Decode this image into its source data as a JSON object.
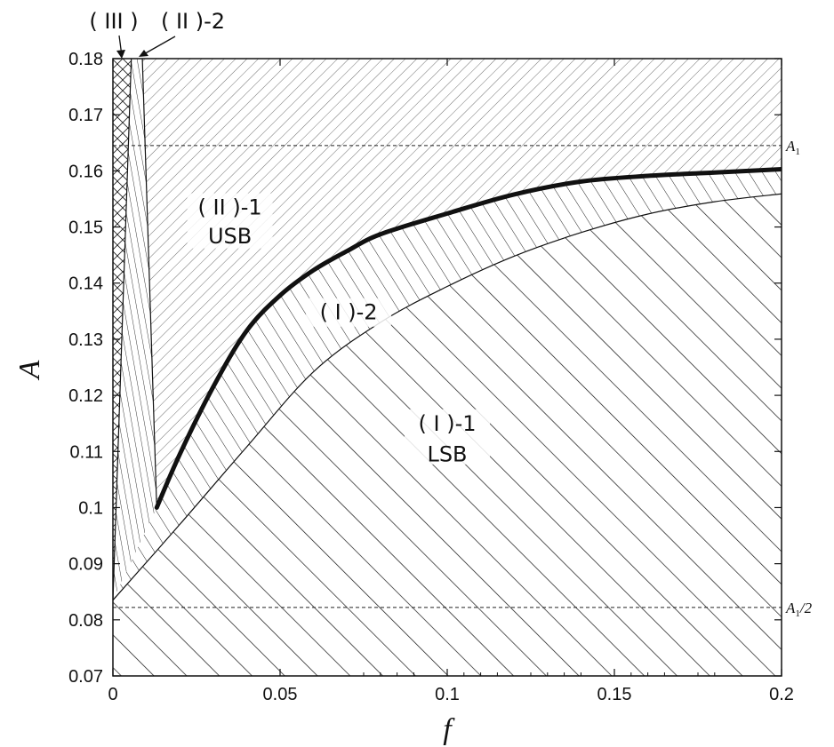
{
  "chart_data": {
    "type": "area",
    "xlabel": "f",
    "ylabel": "A",
    "xlim": [
      0,
      0.2
    ],
    "ylim": [
      0.07,
      0.18
    ],
    "x_ticks": [
      "0",
      "0.05",
      "0.1",
      "0.15",
      "0.2"
    ],
    "y_ticks": [
      "0.07",
      "0.08",
      "0.09",
      "0.1",
      "0.11",
      "0.12",
      "0.13",
      "0.14",
      "0.15",
      "0.16",
      "0.17",
      "0.18"
    ],
    "reference_lines": [
      {
        "name": "A1",
        "label_main": "A",
        "label_sub": "1",
        "label_suffix": "",
        "y": 0.1645
      },
      {
        "name": "A1/2",
        "label_main": "A",
        "label_sub": "1",
        "label_suffix": "/2",
        "y": 0.0822
      }
    ],
    "curves": {
      "boundary_USB": {
        "x": [
          0.0131,
          0.02,
          0.03,
          0.04,
          0.05,
          0.06,
          0.07,
          0.08,
          0.1,
          0.12,
          0.14,
          0.16,
          0.18,
          0.2
        ],
        "y": [
          0.1,
          0.1095,
          0.1215,
          0.1315,
          0.1378,
          0.1423,
          0.1457,
          0.1487,
          0.1524,
          0.1558,
          0.1581,
          0.1591,
          0.1597,
          0.1603
        ]
      },
      "boundary_LSB": {
        "x": [
          0.0,
          0.02,
          0.04,
          0.06,
          0.08,
          0.1,
          0.12,
          0.14,
          0.16,
          0.18,
          0.2
        ],
        "y": [
          0.0835,
          0.097,
          0.1108,
          0.1242,
          0.133,
          0.1394,
          0.1448,
          0.149,
          0.1523,
          0.1545,
          0.1559
        ]
      },
      "boundary_II2_left": {
        "x": [
          0.0,
          0.0055
        ],
        "y": [
          0.0835,
          0.18
        ]
      },
      "boundary_II2_right": {
        "x": [
          0.0131,
          0.0088
        ],
        "y": [
          0.1,
          0.18
        ]
      }
    },
    "regions": [
      {
        "id": "III",
        "label": "( III )"
      },
      {
        "id": "II-2",
        "label": "( II )-2"
      },
      {
        "id": "II-1",
        "label": "( II )-1",
        "sublabel": "USB"
      },
      {
        "id": "I-2",
        "label": "( I )-2"
      },
      {
        "id": "I-1",
        "label": "( I )-1",
        "sublabel": "LSB"
      }
    ]
  }
}
